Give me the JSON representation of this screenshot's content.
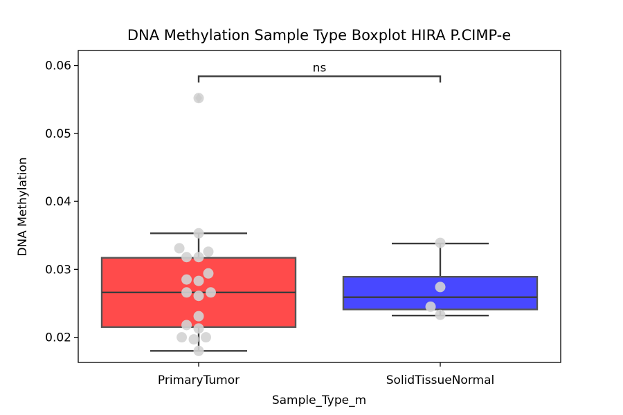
{
  "chart_data": {
    "type": "box",
    "title": "DNA Methylation Sample Type Boxplot HIRA P.CIMP-e",
    "xlabel": "Sample_Type_m",
    "ylabel": "DNA Methylation",
    "ylim": [
      0.0163,
      0.0622
    ],
    "yticks": [
      "0.02",
      "0.03",
      "0.04",
      "0.05",
      "0.06"
    ],
    "grid": false,
    "categories": [
      "PrimaryTumor",
      "SolidTissueNormal"
    ],
    "boxes": [
      {
        "category": "PrimaryTumor",
        "color": "#ff4b4b",
        "whisker_low": 0.018,
        "q1": 0.0215,
        "median": 0.0266,
        "q3": 0.0317,
        "whisker_high": 0.0353,
        "outliers": [
          0.0552
        ]
      },
      {
        "category": "SolidTissueNormal",
        "color": "#4848ff",
        "whisker_low": 0.0232,
        "q1": 0.0241,
        "median": 0.0259,
        "q3": 0.0289,
        "whisker_high": 0.0338,
        "outliers": []
      }
    ],
    "points": [
      {
        "category": "PrimaryTumor",
        "jitter": 0.0,
        "value": 0.0552
      },
      {
        "category": "PrimaryTumor",
        "jitter": 0.0,
        "value": 0.0353
      },
      {
        "category": "PrimaryTumor",
        "jitter": -0.08,
        "value": 0.0331
      },
      {
        "category": "PrimaryTumor",
        "jitter": 0.04,
        "value": 0.0326
      },
      {
        "category": "PrimaryTumor",
        "jitter": -0.05,
        "value": 0.0318
      },
      {
        "category": "PrimaryTumor",
        "jitter": 0.0,
        "value": 0.0318
      },
      {
        "category": "PrimaryTumor",
        "jitter": 0.04,
        "value": 0.0294
      },
      {
        "category": "PrimaryTumor",
        "jitter": -0.05,
        "value": 0.0285
      },
      {
        "category": "PrimaryTumor",
        "jitter": 0.0,
        "value": 0.0283
      },
      {
        "category": "PrimaryTumor",
        "jitter": -0.05,
        "value": 0.0266
      },
      {
        "category": "PrimaryTumor",
        "jitter": 0.05,
        "value": 0.0266
      },
      {
        "category": "PrimaryTumor",
        "jitter": 0.0,
        "value": 0.0261
      },
      {
        "category": "PrimaryTumor",
        "jitter": 0.0,
        "value": 0.0231
      },
      {
        "category": "PrimaryTumor",
        "jitter": -0.05,
        "value": 0.0218
      },
      {
        "category": "PrimaryTumor",
        "jitter": 0.0,
        "value": 0.0213
      },
      {
        "category": "PrimaryTumor",
        "jitter": -0.07,
        "value": 0.02
      },
      {
        "category": "PrimaryTumor",
        "jitter": 0.03,
        "value": 0.02
      },
      {
        "category": "PrimaryTumor",
        "jitter": -0.02,
        "value": 0.0197
      },
      {
        "category": "PrimaryTumor",
        "jitter": 0.0,
        "value": 0.018
      },
      {
        "category": "SolidTissueNormal",
        "jitter": 0.0,
        "value": 0.0339
      },
      {
        "category": "SolidTissueNormal",
        "jitter": 0.0,
        "value": 0.0274
      },
      {
        "category": "SolidTissueNormal",
        "jitter": -0.04,
        "value": 0.0245
      },
      {
        "category": "SolidTissueNormal",
        "jitter": 0.0,
        "value": 0.0233
      }
    ],
    "annotation": {
      "text": "ns",
      "between": [
        "PrimaryTumor",
        "SolidTissueNormal"
      ],
      "y": 0.0584
    },
    "colors": {
      "point": "#d3d3d3",
      "line": "#3b3b3b"
    }
  }
}
